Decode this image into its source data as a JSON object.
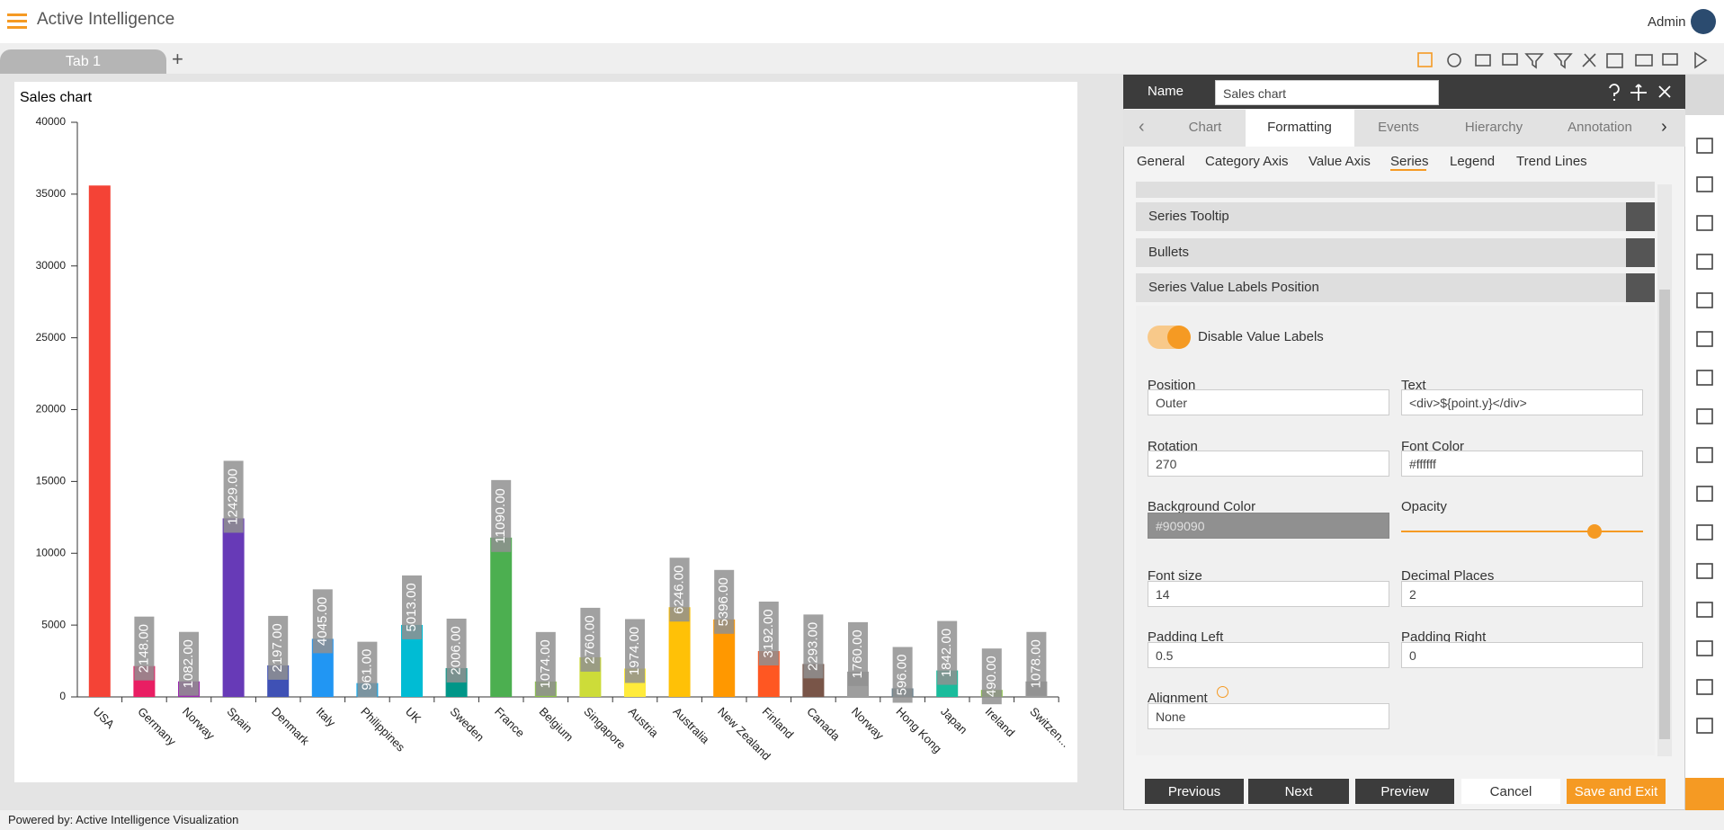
{
  "header": {
    "app_title": "Active Intelligence",
    "user": "Admin"
  },
  "tabs": [
    "Tab 1"
  ],
  "chart_data": {
    "type": "bar",
    "title": "Sales chart",
    "categories": [
      "USA",
      "Germany",
      "Norway",
      "Spain",
      "Denmark",
      "Italy",
      "Philippines",
      "UK",
      "Sweden",
      "France",
      "Belgium",
      "Singapore",
      "Austria",
      "Australia",
      "New Zealand",
      "Finland",
      "Canada",
      "Norway",
      "Hong Kong",
      "Japan",
      "Ireland",
      "Switzen..."
    ],
    "values": [
      35600,
      2148,
      1082,
      12429,
      2197,
      4045,
      961,
      5013,
      2006,
      11090,
      1074,
      2760,
      1974,
      6246,
      5396,
      3192,
      2293,
      1760,
      596,
      1842,
      490,
      1078
    ],
    "value_labels": [
      null,
      "2148.00",
      "1082.00",
      "12429.00",
      "2197.00",
      "4045.00",
      "961.00",
      "5013.00",
      "2006.00",
      "11090.00",
      "1074.00",
      "2760.00",
      "1974.00",
      "6246.00",
      "5396.00",
      "3192.00",
      "2293.00",
      "1760.00",
      "596.00",
      "1842.00",
      "490.00",
      "1078.00"
    ],
    "colors": [
      "#f44336",
      "#e91e63",
      "#9c27b0",
      "#673ab7",
      "#3f51b5",
      "#2196f3",
      "#03a9f4",
      "#00bcd4",
      "#009688",
      "#4caf50",
      "#8bc34a",
      "#cddc39",
      "#ffeb3b",
      "#ffc107",
      "#ff9800",
      "#ff5722",
      "#795548",
      "#9e9e9e",
      "#607d8b",
      "#1abc9c",
      "#8bc34a",
      "#9e9e9e"
    ],
    "label_background": "#909090",
    "label_color": "#ffffff",
    "ylim": [
      0,
      40000
    ],
    "yticks": [
      0,
      5000,
      10000,
      15000,
      20000,
      25000,
      30000,
      35000,
      40000
    ]
  },
  "panel": {
    "name_label": "Name",
    "name_value": "Sales chart",
    "tabs": [
      "Chart",
      "Formatting",
      "Events",
      "Hierarchy",
      "Annotation"
    ],
    "subtabs": [
      "General",
      "Category Axis",
      "Value Axis",
      "Series",
      "Legend",
      "Trend Lines"
    ],
    "sections": [
      "Series Tooltip",
      "Bullets",
      "Series Value Labels Position"
    ],
    "toggle_label": "Disable Value Labels",
    "fields": [
      {
        "label": "Position",
        "value": "Outer"
      },
      {
        "label": "Text",
        "value": "<div>${point.y}</div>"
      },
      {
        "label": "Rotation",
        "value": "270"
      },
      {
        "label": "Font Color",
        "value": "#ffffff"
      },
      {
        "label": "Background Color",
        "value": "#909090"
      },
      {
        "label": "Opacity"
      },
      {
        "label": "Font size",
        "value": "14"
      },
      {
        "label": "Decimal Places",
        "value": "2"
      },
      {
        "label": "Padding Left",
        "value": "0.5"
      },
      {
        "label": "Padding Right",
        "value": "0"
      },
      {
        "label": "Alignment",
        "value": "None"
      }
    ],
    "buttons": [
      "Previous",
      "Next",
      "Preview",
      "Cancel",
      "Save and Exit"
    ]
  },
  "footer": "Powered by: Active Intelligence Visualization"
}
